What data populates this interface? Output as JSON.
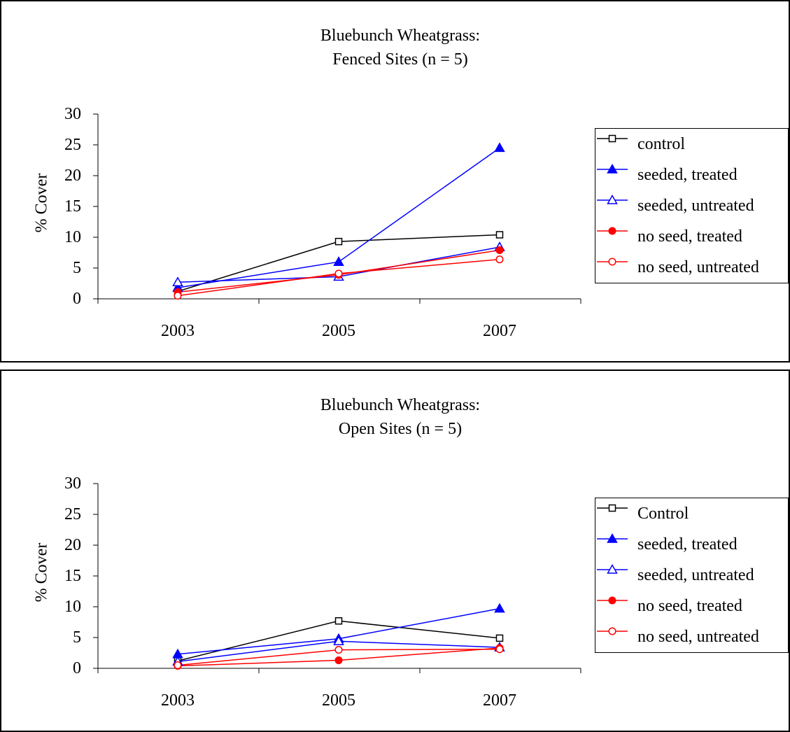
{
  "chart_data": [
    {
      "type": "line",
      "title": "Bluebunch Wheatgrass:",
      "subtitle": "Fenced Sites (n = 5)",
      "xlabel": "",
      "ylabel": "% Cover",
      "categories": [
        "2003",
        "2005",
        "2007"
      ],
      "ylim": [
        0,
        30
      ],
      "yticks": [
        "0",
        "5",
        "10",
        "15",
        "20",
        "25",
        "30"
      ],
      "grid": false,
      "legend_position": "right",
      "series": [
        {
          "name": "control",
          "values": [
            1.2,
            9.3,
            10.4
          ],
          "color": "#000000",
          "marker": "open-square"
        },
        {
          "name": "seeded, treated",
          "values": [
            1.8,
            6.0,
            24.5
          ],
          "color": "#0000ff",
          "marker": "filled-triangle"
        },
        {
          "name": "seeded, untreated",
          "values": [
            2.7,
            3.6,
            8.4
          ],
          "color": "#0000ff",
          "marker": "open-triangle"
        },
        {
          "name": "no seed, treated",
          "values": [
            1.1,
            3.9,
            7.9
          ],
          "color": "#ff0000",
          "marker": "filled-circle"
        },
        {
          "name": "no seed, untreated",
          "values": [
            0.5,
            4.1,
            6.4
          ],
          "color": "#ff0000",
          "marker": "open-circle"
        }
      ]
    },
    {
      "type": "line",
      "title": "Bluebunch Wheatgrass:",
      "subtitle": "Open Sites (n = 5)",
      "xlabel": "",
      "ylabel": "% Cover",
      "categories": [
        "2003",
        "2005",
        "2007"
      ],
      "ylim": [
        0,
        30
      ],
      "yticks": [
        "0",
        "5",
        "10",
        "15",
        "20",
        "25",
        "30"
      ],
      "grid": false,
      "legend_position": "right",
      "series": [
        {
          "name": "Control",
          "values": [
            1.2,
            7.7,
            4.9
          ],
          "color": "#000000",
          "marker": "open-square"
        },
        {
          "name": "seeded, treated",
          "values": [
            2.3,
            4.8,
            9.7
          ],
          "color": "#0000ff",
          "marker": "filled-triangle"
        },
        {
          "name": "seeded, untreated",
          "values": [
            1.1,
            4.4,
            3.4
          ],
          "color": "#0000ff",
          "marker": "open-triangle"
        },
        {
          "name": "no seed, treated",
          "values": [
            0.4,
            1.3,
            3.3
          ],
          "color": "#ff0000",
          "marker": "filled-circle"
        },
        {
          "name": "no seed, untreated",
          "values": [
            0.5,
            3.0,
            3.1
          ],
          "color": "#ff0000",
          "marker": "open-circle"
        }
      ]
    }
  ]
}
